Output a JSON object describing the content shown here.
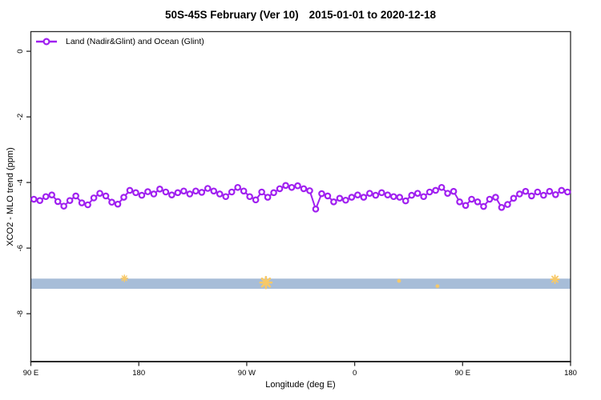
{
  "title": {
    "main": "50S-45S February (Ver 10)",
    "range": "2015-01-01 to 2020-12-18"
  },
  "legend": {
    "label": "Land (Nadir&Glint) and Ocean (Glint)",
    "marker": "open-circle-on-line",
    "color": "#A020F0"
  },
  "colors": {
    "series": "#A020F0",
    "band": "#A7BDD8",
    "band_marker": "#F8C967",
    "frame": "#2b2b2b",
    "text": "#000000",
    "background": "#ffffff"
  },
  "chart_data": {
    "type": "line",
    "title": "50S-45S February (Ver 10)  2015-01-01 to 2020-12-18",
    "xlabel": "Longitude (deg E)",
    "ylabel": "XCO2 - MLO trend (ppm)",
    "xlim": [
      90,
      540
    ],
    "ylim": [
      -9.46,
      0.6
    ],
    "grid": false,
    "legend_position": "top-left",
    "x_ticks": [
      {
        "value": 90,
        "label": "90 E"
      },
      {
        "value": 180,
        "label": "180"
      },
      {
        "value": 270,
        "label": "90 W"
      },
      {
        "value": 360,
        "label": "0"
      },
      {
        "value": 450,
        "label": "90 E"
      },
      {
        "value": 540,
        "label": "180"
      }
    ],
    "y_ticks": [
      {
        "value": 0,
        "label": "0"
      },
      {
        "value": -2,
        "label": "-2"
      },
      {
        "value": -4,
        "label": "-4"
      },
      {
        "value": -6,
        "label": "-6"
      },
      {
        "value": -8,
        "label": "-8"
      }
    ],
    "series": [
      {
        "name": "Land (Nadir&Glint) and Ocean (Glint)",
        "color": "#A020F0",
        "marker": "open-circle",
        "x": [
          92.5,
          97.5,
          102.5,
          107.5,
          112.5,
          117.5,
          122.5,
          127.5,
          132.5,
          137.5,
          142.5,
          147.5,
          152.5,
          157.5,
          162.5,
          167.5,
          172.5,
          177.5,
          182.5,
          187.5,
          192.5,
          197.5,
          202.5,
          207.5,
          212.5,
          217.5,
          222.5,
          227.5,
          232.5,
          237.5,
          242.5,
          247.5,
          252.5,
          257.5,
          262.5,
          267.5,
          272.5,
          277.5,
          282.5,
          287.5,
          292.5,
          297.5,
          302.5,
          307.5,
          312.5,
          317.5,
          322.5,
          327.5,
          332.5,
          337.5,
          342.5,
          347.5,
          352.5,
          357.5,
          362.5,
          367.5,
          372.5,
          377.5,
          382.5,
          387.5,
          392.5,
          397.5,
          402.5,
          407.5,
          412.5,
          417.5,
          422.5,
          427.5,
          432.5,
          437.5,
          442.5,
          447.5,
          452.5,
          457.5,
          462.5,
          467.5,
          472.5,
          477.5,
          482.5,
          487.5,
          492.5,
          497.5,
          502.5,
          507.5,
          512.5,
          517.5,
          522.5,
          527.5,
          532.5,
          537.5
        ],
        "values": [
          -4.51,
          -4.55,
          -4.43,
          -4.38,
          -4.58,
          -4.72,
          -4.55,
          -4.41,
          -4.62,
          -4.68,
          -4.47,
          -4.33,
          -4.41,
          -4.6,
          -4.66,
          -4.45,
          -4.24,
          -4.31,
          -4.39,
          -4.28,
          -4.35,
          -4.2,
          -4.29,
          -4.38,
          -4.31,
          -4.26,
          -4.35,
          -4.26,
          -4.3,
          -4.18,
          -4.26,
          -4.35,
          -4.43,
          -4.29,
          -4.15,
          -4.26,
          -4.43,
          -4.53,
          -4.29,
          -4.45,
          -4.31,
          -4.19,
          -4.09,
          -4.15,
          -4.1,
          -4.19,
          -4.25,
          -4.81,
          -4.34,
          -4.41,
          -4.59,
          -4.48,
          -4.54,
          -4.45,
          -4.38,
          -4.45,
          -4.33,
          -4.39,
          -4.31,
          -4.38,
          -4.43,
          -4.45,
          -4.56,
          -4.39,
          -4.33,
          -4.43,
          -4.29,
          -4.24,
          -4.15,
          -4.33,
          -4.27,
          -4.59,
          -4.7,
          -4.51,
          -4.59,
          -4.73,
          -4.51,
          -4.45,
          -4.76,
          -4.67,
          -4.48,
          -4.35,
          -4.27,
          -4.41,
          -4.29,
          -4.39,
          -4.27,
          -4.37,
          -4.24,
          -4.29
        ]
      }
    ],
    "band": {
      "description": "solid horizontal band across full x-range",
      "x_from": 90,
      "x_to": 540,
      "y_from": -6.93,
      "y_to": -7.24,
      "color": "#A7BDD8"
    },
    "band_markers": {
      "shape": "asterisk",
      "color": "#F8C967",
      "points": [
        {
          "x": 168,
          "y": -6.92,
          "size": 4
        },
        {
          "x": 286,
          "y": -7.05,
          "size": 7
        },
        {
          "x": 397,
          "y": -7.0,
          "size": 2
        },
        {
          "x": 429,
          "y": -7.16,
          "size": 2
        },
        {
          "x": 527,
          "y": -6.95,
          "size": 5
        }
      ]
    }
  }
}
